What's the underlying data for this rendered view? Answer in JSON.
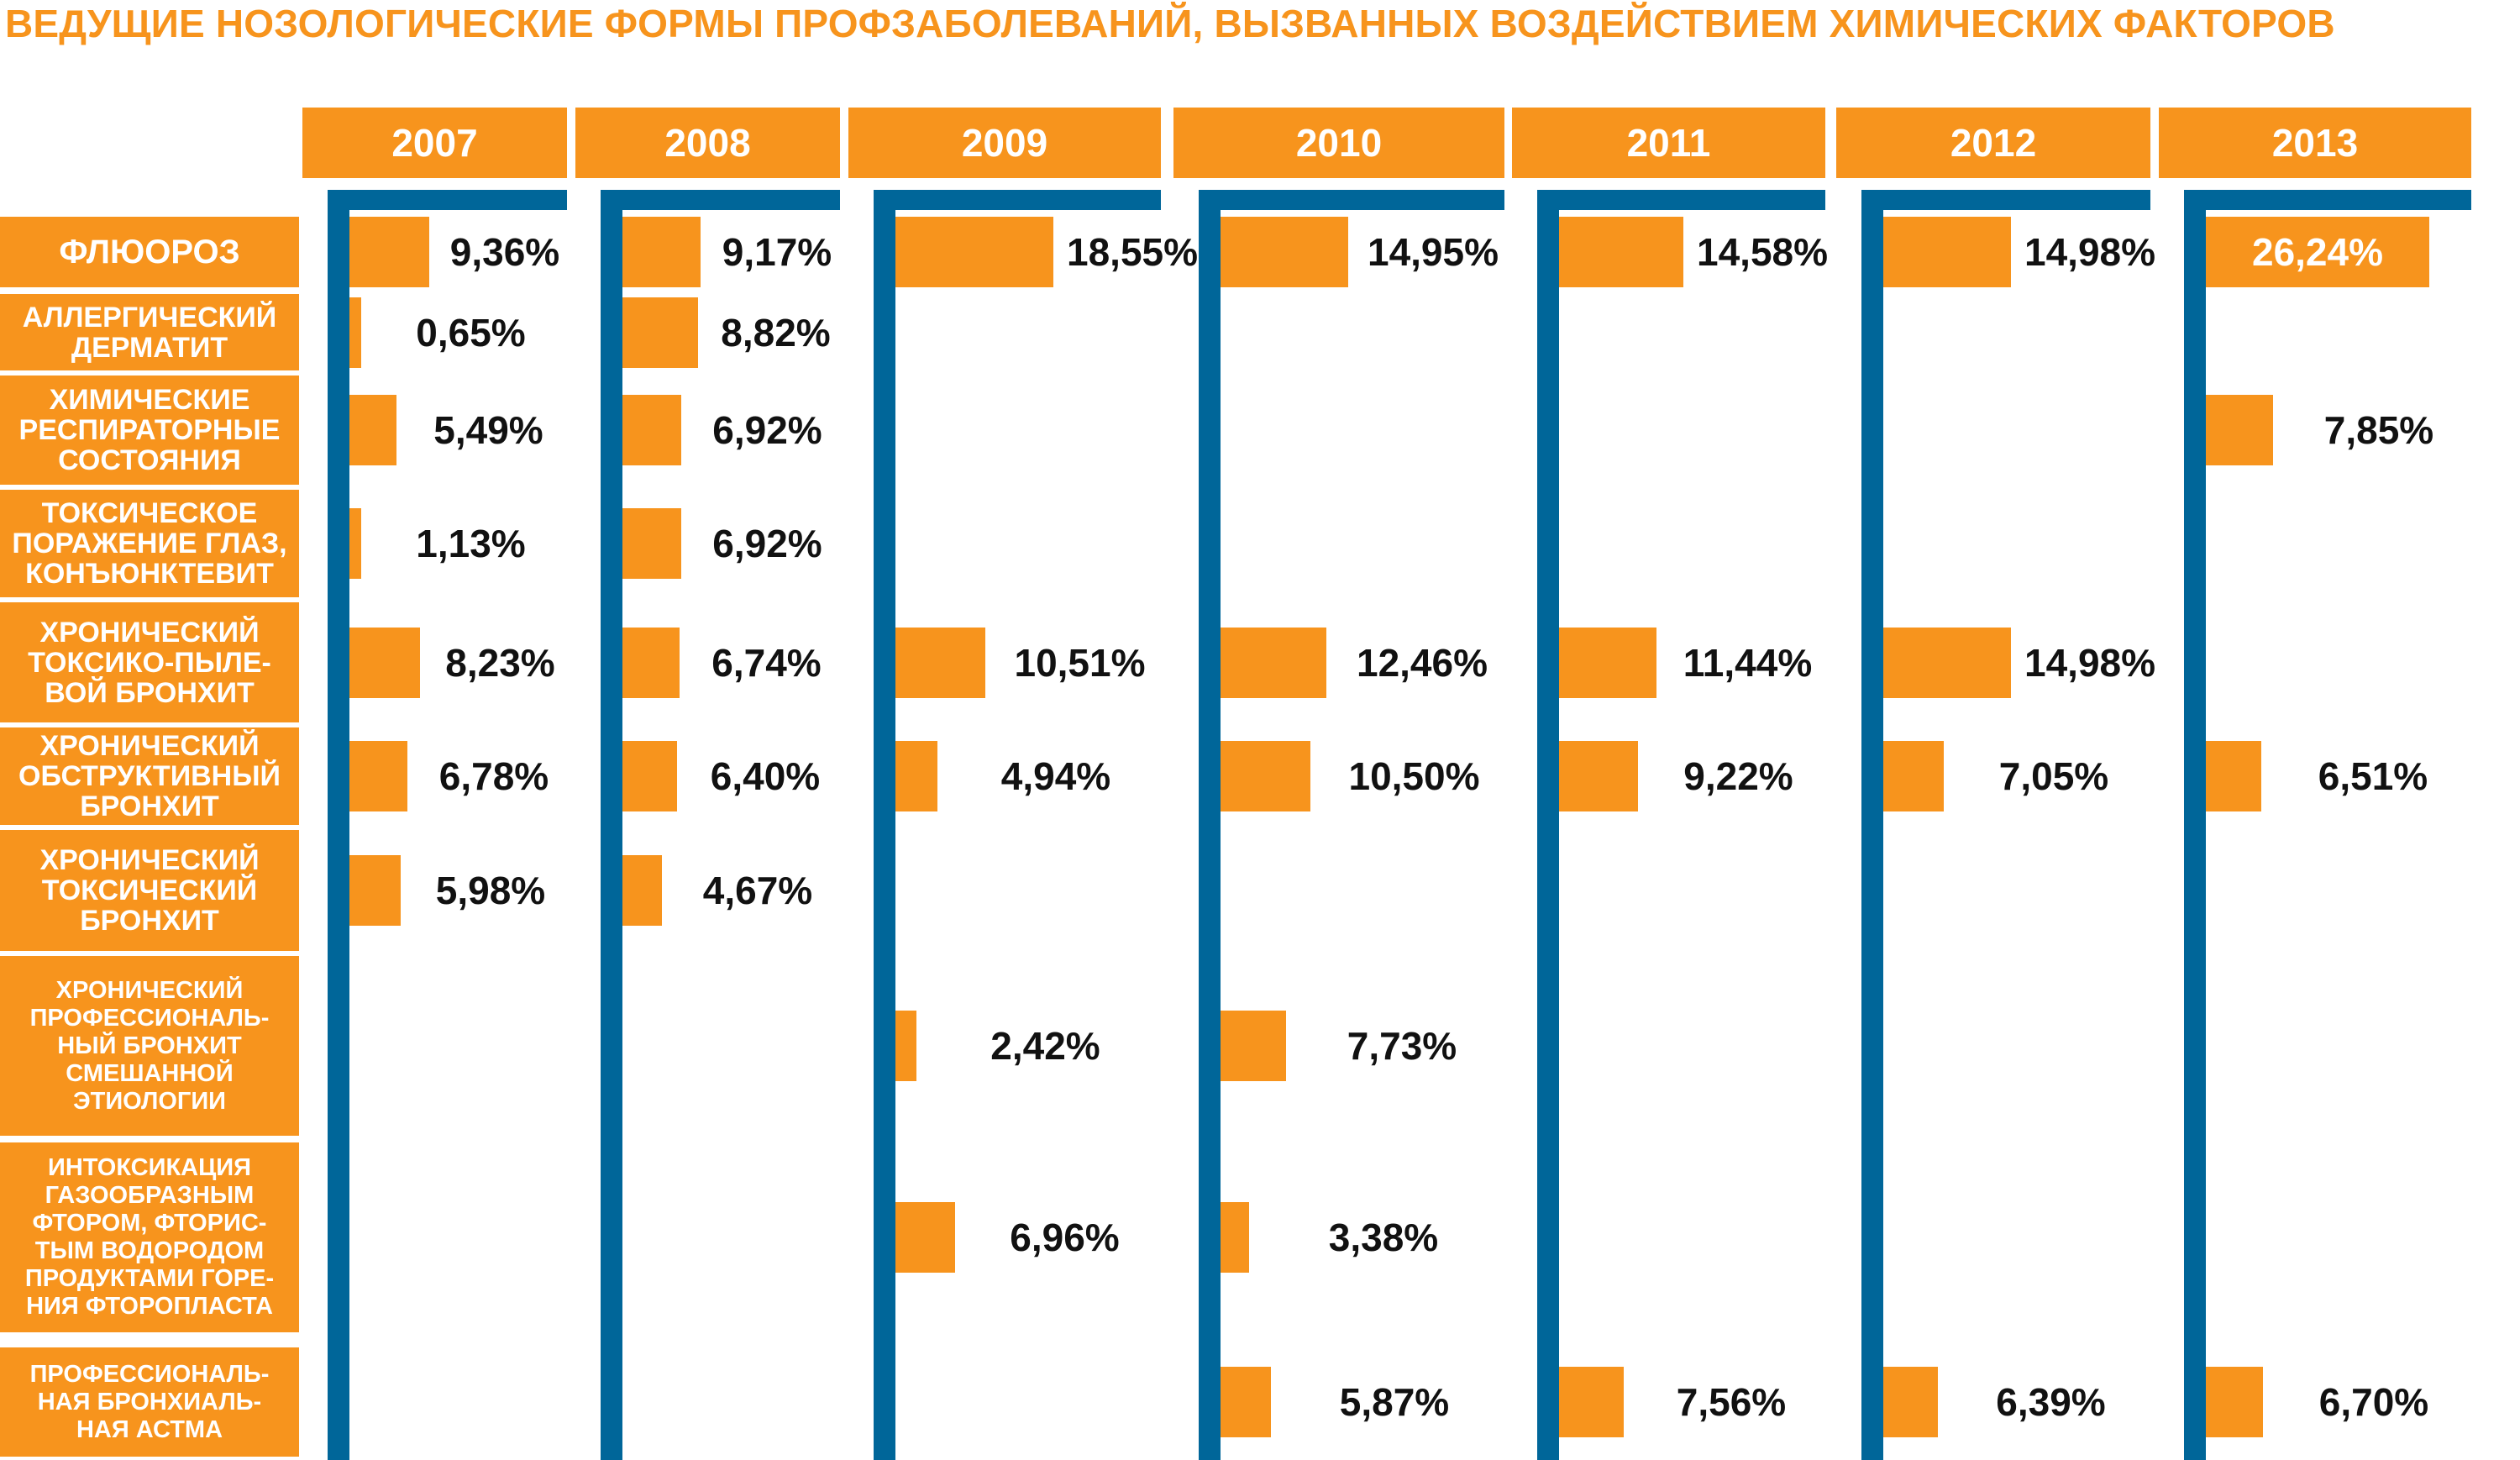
{
  "chart_data": {
    "type": "bar",
    "title": "ВЕДУЩИЕ НОЗОЛОГИЧЕСКИЕ ФОРМЫ ПРОФЗАБОЛЕВАНИЙ, ВЫЗВАННЫХ ВОЗДЕЙСТВИЕМ ХИМИЧЕСКИХ ФАКТОРОВ",
    "categories": [
      "ФЛЮОРОЗ",
      "АЛЛЕРГИЧЕСКИЙ\nДЕРМАТИТ",
      "ХИМИЧЕСКИЕ\nРЕСПИРАТОРНЫЕ\nСОСТОЯНИЯ",
      "ТОКСИЧЕСКОЕ\nПОРАЖЕНИЕ ГЛАЗ,\nКОНЪЮНКТЕВИТ",
      "ХРОНИЧЕСКИЙ\nТОКСИКО-ПЫЛЕ-\nВОЙ БРОНХИТ",
      "ХРОНИЧЕСКИЙ\nОБСТРУКТИВНЫЙ\nБРОНХИТ",
      "ХРОНИЧЕСКИЙ\nТОКСИЧЕСКИЙ\nБРОНХИТ",
      "ХРОНИЧЕСКИЙ\nПРОФЕССИОНАЛЬ-\nНЫЙ БРОНХИТ\nСМЕШАННОЙ\nЭТИОЛОГИИ",
      "ИНТОКСИКАЦИЯ\nГАЗООБРАЗНЫМ\nФТОРОМ, ФТОРИС-\nТЫМ ВОДОРОДОМ\nПРОДУКТАМИ ГОРЕ-\nНИЯ ФТОРОПЛАСТА",
      "ПРОФЕССИОНАЛЬ-\nНАЯ БРОНХИАЛЬ-\nНАЯ АСТМА"
    ],
    "series": [
      {
        "name": "2007",
        "values": [
          9.36,
          0.65,
          5.49,
          1.13,
          8.23,
          6.78,
          5.98,
          null,
          null,
          null
        ],
        "labels": [
          "9,36%",
          "0,65%",
          "5,49%",
          "1,13%",
          "8,23%",
          "6,78%",
          "5,98%",
          null,
          null,
          null
        ]
      },
      {
        "name": "2008",
        "values": [
          9.17,
          8.82,
          6.92,
          6.92,
          6.74,
          6.4,
          4.67,
          null,
          null,
          null
        ],
        "labels": [
          "9,17%",
          "8,82%",
          "6,92%",
          "6,92%",
          "6,74%",
          "6,40%",
          "4,67%",
          null,
          null,
          null
        ]
      },
      {
        "name": "2009",
        "values": [
          18.55,
          null,
          null,
          null,
          10.51,
          4.94,
          null,
          2.42,
          6.96,
          null
        ],
        "labels": [
          "18,55%",
          null,
          null,
          null,
          "10,51%",
          "4,94%",
          null,
          "2,42%",
          "6,96%",
          null
        ]
      },
      {
        "name": "2010",
        "values": [
          14.95,
          null,
          null,
          null,
          12.46,
          10.5,
          null,
          7.73,
          3.38,
          5.87
        ],
        "labels": [
          "14,95%",
          null,
          null,
          null,
          "12,46%",
          "10,50%",
          null,
          "7,73%",
          "3,38%",
          "5,87%"
        ]
      },
      {
        "name": "2011",
        "values": [
          14.58,
          null,
          null,
          null,
          11.44,
          9.22,
          null,
          null,
          null,
          7.56
        ],
        "labels": [
          "14,58%",
          null,
          null,
          null,
          "11,44%",
          "9,22%",
          null,
          null,
          null,
          "7,56%"
        ]
      },
      {
        "name": "2012",
        "values": [
          14.98,
          null,
          null,
          null,
          14.98,
          7.05,
          null,
          null,
          null,
          6.39
        ],
        "labels": [
          "14,98%",
          null,
          null,
          null,
          "14,98%",
          "7,05%",
          null,
          null,
          null,
          "6,39%"
        ]
      },
      {
        "name": "2013",
        "values": [
          26.24,
          null,
          7.85,
          null,
          null,
          6.51,
          null,
          null,
          null,
          6.7
        ],
        "labels": [
          "26,24%",
          null,
          "7,85%",
          null,
          null,
          "6,51%",
          null,
          null,
          null,
          "6,70%"
        ]
      }
    ],
    "ylabel": "",
    "xlabel": "",
    "value_unit": "%",
    "grid": false,
    "legend": "none"
  },
  "colors": {
    "bar": "#f7941d",
    "header": "#f7941d",
    "bracket": "#006699",
    "title": "#f7941d",
    "label_text": "#ffffff",
    "value_text": "#111111"
  }
}
